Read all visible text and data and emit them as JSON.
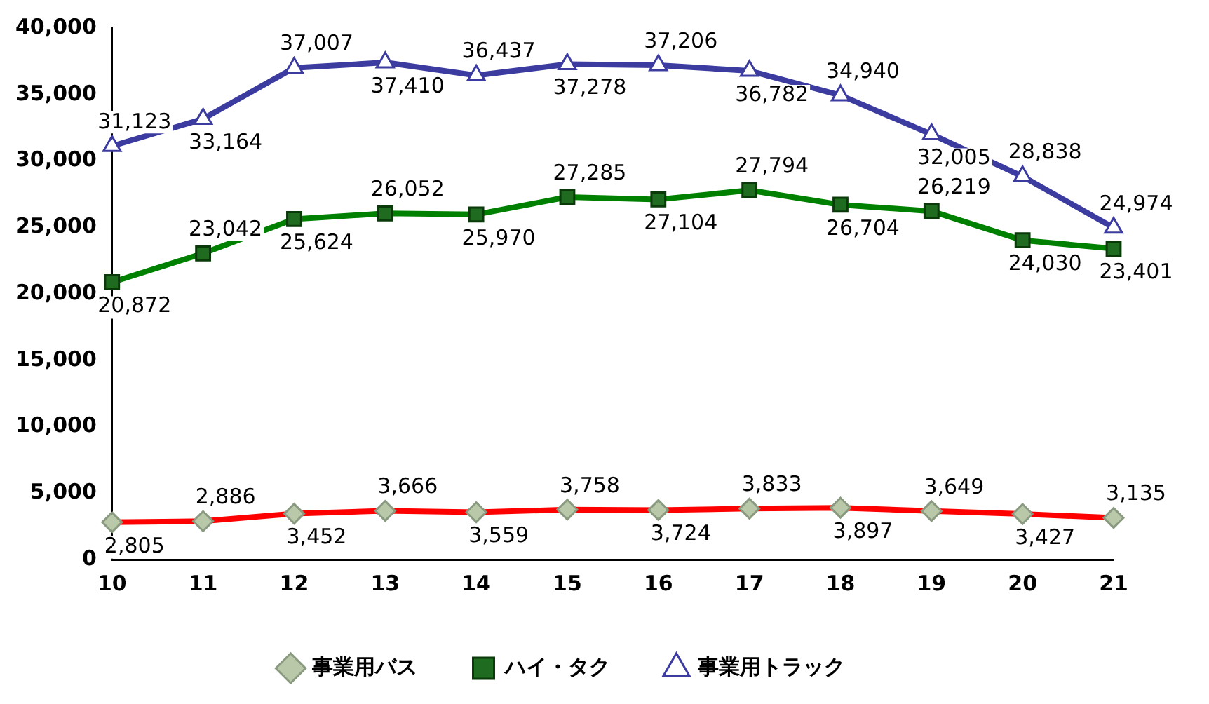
{
  "chart_data": {
    "type": "line",
    "categories": [
      "10",
      "11",
      "12",
      "13",
      "14",
      "15",
      "16",
      "17",
      "18",
      "19",
      "20",
      "21"
    ],
    "series": [
      {
        "name": "事業用バス",
        "color": "#ff0000",
        "marker": "diamond",
        "values": [
          2805,
          2886,
          3452,
          3666,
          3559,
          3758,
          3724,
          3833,
          3897,
          3649,
          3427,
          3135
        ],
        "value_labels": [
          "2,805",
          "2,886",
          "3,452",
          "3,666",
          "3,559",
          "3,758",
          "3,724",
          "3,833",
          "3,897",
          "3,649",
          "3,427",
          "3,135"
        ]
      },
      {
        "name": "ハイ・タク",
        "color": "#008000",
        "marker": "square",
        "values": [
          20872,
          23042,
          25624,
          26052,
          25970,
          27285,
          27104,
          27794,
          26704,
          26219,
          24030,
          23401
        ],
        "value_labels": [
          "20,872",
          "23,042",
          "25,624",
          "26,052",
          "25,970",
          "27,285",
          "27,104",
          "27,794",
          "26,704",
          "26,219",
          "24,030",
          "23,401"
        ]
      },
      {
        "name": "事業用トラック",
        "color": "#3c3ca0",
        "marker": "triangle",
        "values": [
          31123,
          33164,
          37007,
          37410,
          36437,
          37278,
          37206,
          36782,
          34940,
          32005,
          28838,
          24974
        ],
        "value_labels": [
          "31,123",
          "33,164",
          "37,007",
          "37,410",
          "36,437",
          "37,278",
          "37,206",
          "36,782",
          "34,940",
          "32,005",
          "28,838",
          "24,974"
        ]
      }
    ],
    "ylim": [
      0,
      40000
    ],
    "yticks": [
      {
        "value": 0,
        "label": "0"
      },
      {
        "value": 5000,
        "label": "5,000"
      },
      {
        "value": 10000,
        "label": "10,000"
      },
      {
        "value": 15000,
        "label": "15,000"
      },
      {
        "value": 20000,
        "label": "20,000"
      },
      {
        "value": 25000,
        "label": "25,000"
      },
      {
        "value": 30000,
        "label": "30,000"
      },
      {
        "value": 35000,
        "label": "35,000"
      },
      {
        "value": 40000,
        "label": "40,000"
      }
    ],
    "grid": false,
    "legend": "bottom",
    "data_labels": true
  }
}
